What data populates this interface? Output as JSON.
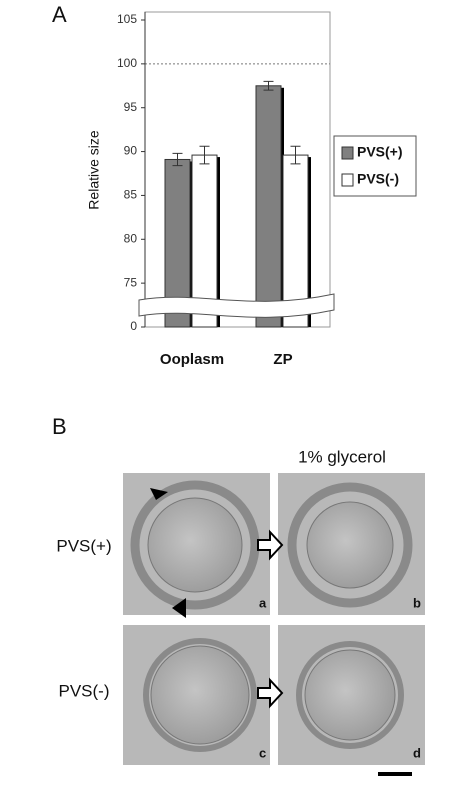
{
  "chart_data": {
    "type": "bar",
    "panel_label": "A",
    "y_label": "Relative size",
    "categories": [
      "Ooplasm",
      "ZP"
    ],
    "series": [
      {
        "name": "PVS(+)",
        "color": "#808080",
        "values": [
          89.1,
          97.5
        ],
        "errors": [
          0.7,
          0.5
        ]
      },
      {
        "name": "PVS(-)",
        "color": "#ffffff",
        "values": [
          89.6,
          89.6
        ],
        "errors": [
          1.0,
          1.0
        ]
      }
    ],
    "ylim": [
      0,
      105
    ],
    "yticks": [
      0,
      75,
      80,
      85,
      90,
      95,
      100,
      105
    ],
    "axis_break": true,
    "reference_line": 100,
    "legend": "right"
  },
  "panel_b": {
    "label": "B",
    "column_title": "1% glycerol",
    "rows": [
      "PVS(+)",
      "PVS(-)"
    ],
    "image_labels": [
      "a",
      "b",
      "c",
      "d"
    ]
  }
}
